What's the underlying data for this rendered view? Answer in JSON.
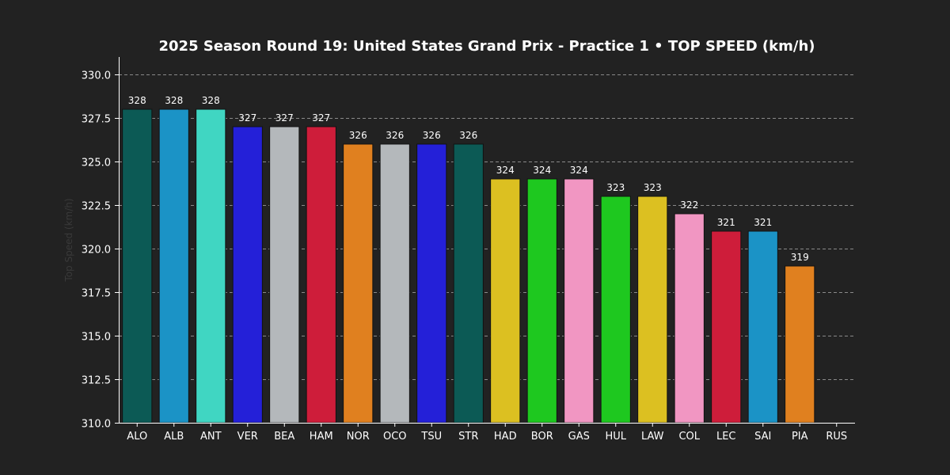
{
  "chart_data": {
    "type": "bar",
    "title": "2025 Season Round 19: United States Grand Prix - Practice 1  •  TOP SPEED (km/h)",
    "xlabel": "",
    "ylabel": "Top Speed (km/h)",
    "ylim": [
      310,
      331
    ],
    "yticks": [
      "310.0",
      "312.5",
      "315.0",
      "317.5",
      "320.0",
      "322.5",
      "325.0",
      "327.5",
      "330.0"
    ],
    "grid": true,
    "categories": [
      "ALO",
      "ALB",
      "ANT",
      "VER",
      "BEA",
      "HAM",
      "NOR",
      "OCO",
      "TSU",
      "STR",
      "HAD",
      "BOR",
      "GAS",
      "HUL",
      "LAW",
      "COL",
      "LEC",
      "SAI",
      "PIA",
      "RUS"
    ],
    "values": [
      328,
      328,
      328,
      327,
      327,
      327,
      326,
      326,
      326,
      326,
      324,
      324,
      324,
      323,
      323,
      322,
      321,
      321,
      319,
      null
    ],
    "value_labels": [
      "328",
      "328",
      "328",
      "327",
      "327",
      "327",
      "326",
      "326",
      "326",
      "326",
      "324",
      "324",
      "324",
      "323",
      "323",
      "322",
      "321",
      "321",
      "319",
      ""
    ],
    "colors": [
      "#0c5a55",
      "#1b93c6",
      "#40d6c2",
      "#2420d8",
      "#b4b8bb",
      "#ce1d3a",
      "#e0801f",
      "#b4b8bb",
      "#2420d8",
      "#0c5a55",
      "#dcc021",
      "#1ec81f",
      "#f196c2",
      "#1ec81f",
      "#dcc021",
      "#f196c2",
      "#ce1d3a",
      "#1b93c6",
      "#e0801f",
      "#00d2be"
    ]
  }
}
